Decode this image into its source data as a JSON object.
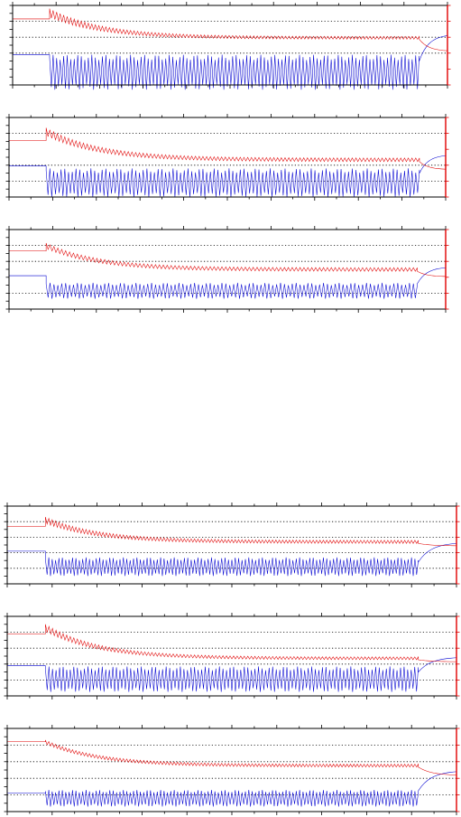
{
  "figure": {
    "panel_count": 6,
    "groups": 2
  },
  "colors": {
    "red_series": "#e00000",
    "blue_series": "#0000d0",
    "frame": "#000000",
    "grid": "#000000"
  },
  "chart_data": [
    {
      "type": "line",
      "id": "panel-1",
      "grid": "dotted-horizontal",
      "legend": "none",
      "title": "",
      "xlabel": "",
      "ylabel": "",
      "xlim": [
        0,
        10
      ],
      "x_major_ticks": 10,
      "x_minor_per_major": 2,
      "ylim": [
        0,
        10
      ],
      "y_major_ticks": 10,
      "gridlines_y": [
        4,
        6,
        8
      ],
      "red_series": {
        "pre_level": 8.3,
        "onset_x": 0.85,
        "peak": 9.6,
        "initial_amp": 1.2,
        "late_level": 6.1,
        "late_amp": 0.35,
        "cycles": 105,
        "end_x": 9.35,
        "tail_end": 4.3
      },
      "blue_series": {
        "pre_level": 3.8,
        "onset_x": 0.85,
        "center": 1.6,
        "amplitude": 2.2,
        "cycles": 105,
        "end_x": 9.35,
        "tail_level": 3.0,
        "tail_end": 6.2
      }
    },
    {
      "type": "line",
      "id": "panel-2",
      "grid": "dotted-horizontal",
      "legend": "none",
      "title": "",
      "xlabel": "",
      "ylabel": "",
      "xlim": [
        0,
        10
      ],
      "x_major_ticks": 10,
      "x_minor_per_major": 2,
      "ylim": [
        0,
        10
      ],
      "y_major_ticks": 10,
      "gridlines_y": [
        2,
        4,
        8
      ],
      "red_series": {
        "pre_level": 7.1,
        "onset_x": 0.85,
        "peak": 8.7,
        "initial_amp": 1.1,
        "late_level": 4.9,
        "late_amp": 0.45,
        "cycles": 100,
        "end_x": 9.4,
        "tail_end": 3.5
      },
      "blue_series": {
        "pre_level": 3.9,
        "onset_x": 0.85,
        "center": 1.8,
        "amplitude": 1.8,
        "cycles": 100,
        "end_x": 9.4,
        "tail_level": 3.0,
        "tail_end": 5.2
      }
    },
    {
      "type": "line",
      "id": "panel-3",
      "grid": "dotted-horizontal",
      "legend": "none",
      "title": "",
      "xlabel": "",
      "ylabel": "",
      "xlim": [
        0,
        10
      ],
      "x_major_ticks": 10,
      "x_minor_per_major": 2,
      "ylim": [
        0,
        10
      ],
      "y_major_ticks": 10,
      "gridlines_y": [
        2,
        6,
        8
      ],
      "red_series": {
        "pre_level": 7.3,
        "onset_x": 0.85,
        "peak": 8.3,
        "initial_amp": 0.8,
        "late_level": 5.2,
        "late_amp": 0.45,
        "cycles": 95,
        "end_x": 9.35,
        "tail_end": 4.1
      },
      "blue_series": {
        "pre_level": 4.2,
        "onset_x": 0.85,
        "center": 2.3,
        "amplitude": 1.0,
        "cycles": 95,
        "end_x": 9.35,
        "tail_level": 3.2,
        "tail_end": 5.2
      }
    },
    {
      "type": "line",
      "id": "panel-4",
      "grid": "dotted-horizontal",
      "legend": "none",
      "title": "",
      "xlabel": "",
      "ylabel": "",
      "xlim": [
        0,
        10
      ],
      "x_major_ticks": 10,
      "x_minor_per_major": 2,
      "ylim": [
        0,
        10
      ],
      "y_major_ticks": 10,
      "gridlines_y": [
        2,
        4,
        6,
        8
      ],
      "red_series": {
        "pre_level": 7.4,
        "onset_x": 0.85,
        "peak": 8.6,
        "initial_amp": 0.9,
        "late_level": 5.6,
        "late_amp": 0.4,
        "cycles": 110,
        "end_x": 9.15,
        "tail_end": 4.9
      },
      "blue_series": {
        "pre_level": 4.2,
        "onset_x": 0.85,
        "center": 2.2,
        "amplitude": 1.2,
        "cycles": 110,
        "end_x": 9.15,
        "tail_level": 2.8,
        "tail_end": 5.2
      }
    },
    {
      "type": "line",
      "id": "panel-5",
      "grid": "dotted-horizontal",
      "legend": "none",
      "title": "",
      "xlabel": "",
      "ylabel": "",
      "xlim": [
        0,
        10
      ],
      "x_major_ticks": 10,
      "x_minor_per_major": 2,
      "ylim": [
        0,
        10
      ],
      "y_major_ticks": 10,
      "gridlines_y": [
        2,
        4,
        6,
        8
      ],
      "red_series": {
        "pre_level": 7.8,
        "onset_x": 0.85,
        "peak": 9.0,
        "initial_amp": 1.0,
        "late_level": 4.9,
        "late_amp": 0.35,
        "cycles": 105,
        "end_x": 9.15,
        "tail_end": 4.3
      },
      "blue_series": {
        "pre_level": 3.8,
        "onset_x": 0.85,
        "center": 2.1,
        "amplitude": 1.6,
        "cycles": 105,
        "end_x": 9.15,
        "tail_level": 3.0,
        "tail_end": 4.8
      }
    },
    {
      "type": "line",
      "id": "panel-6",
      "grid": "dotted-horizontal",
      "legend": "none",
      "title": "",
      "xlabel": "",
      "ylabel": "",
      "xlim": [
        0,
        10
      ],
      "x_major_ticks": 10,
      "x_minor_per_major": 2,
      "ylim": [
        0,
        10
      ],
      "y_major_ticks": 10,
      "gridlines_y": [
        2,
        4,
        6,
        8
      ],
      "red_series": {
        "pre_level": 8.4,
        "onset_x": 0.85,
        "peak": 8.6,
        "initial_amp": 0.55,
        "late_level": 5.7,
        "late_amp": 0.35,
        "cycles": 110,
        "end_x": 9.15,
        "tail_end": 4.4
      },
      "blue_series": {
        "pre_level": 2.2,
        "onset_x": 0.85,
        "center": 1.6,
        "amplitude": 1.0,
        "cycles": 110,
        "end_x": 9.15,
        "tail_level": 2.5,
        "tail_end": 4.8
      }
    }
  ]
}
